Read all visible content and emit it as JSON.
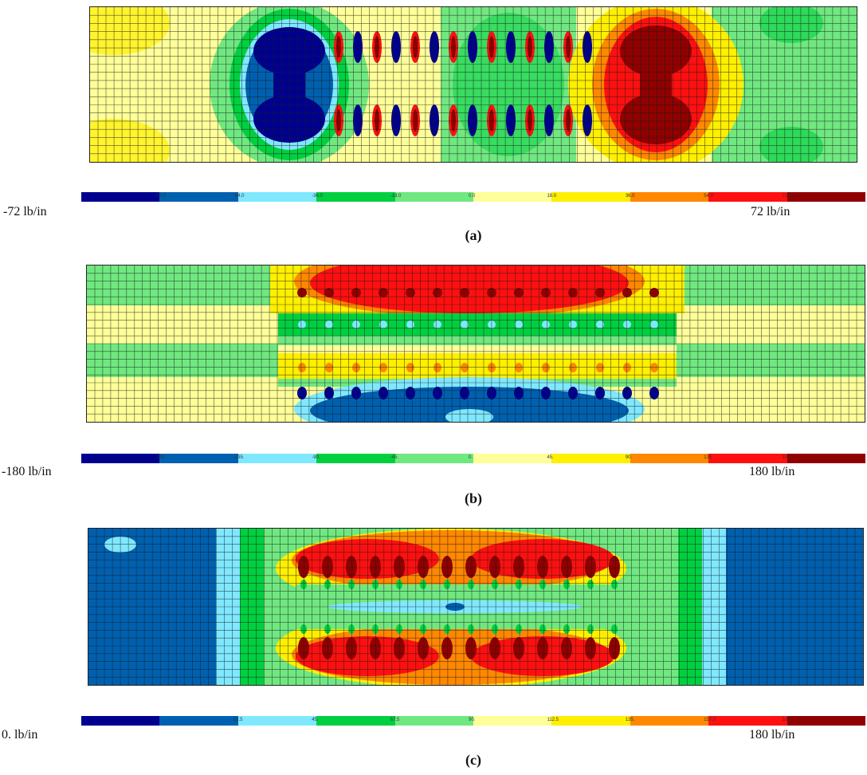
{
  "palette": [
    "#00008f",
    "#0060b0",
    "#7fe8ff",
    "#00d040",
    "#70e880",
    "#ffff99",
    "#ffef00",
    "#ff8800",
    "#ff1010",
    "#900000"
  ],
  "panels": [
    {
      "id": "a",
      "caption": "(a)",
      "min_label": "-72 lb/in",
      "max_label": "72 lb/in",
      "ticks": [
        "",
        "-72.0",
        "-54.0",
        "-36.0",
        "-18.0",
        "0.0",
        "18.0",
        "36.0",
        "54.0",
        "72.0"
      ]
    },
    {
      "id": "b",
      "caption": "(b)",
      "min_label": "-180 lb/in",
      "max_label": "180 lb/in",
      "ticks": [
        "",
        "-180.",
        "-135.",
        "-90.",
        "-45.",
        "0.",
        "45.",
        "90.",
        "135.",
        "180."
      ]
    },
    {
      "id": "c",
      "caption": "(c)",
      "min_label": "0. lb/in",
      "max_label": "180 lb/in",
      "ticks": [
        "",
        "",
        "22.5",
        "45.",
        "67.5",
        "90.",
        "112.5",
        "135.",
        "157.5",
        "180."
      ]
    }
  ]
}
